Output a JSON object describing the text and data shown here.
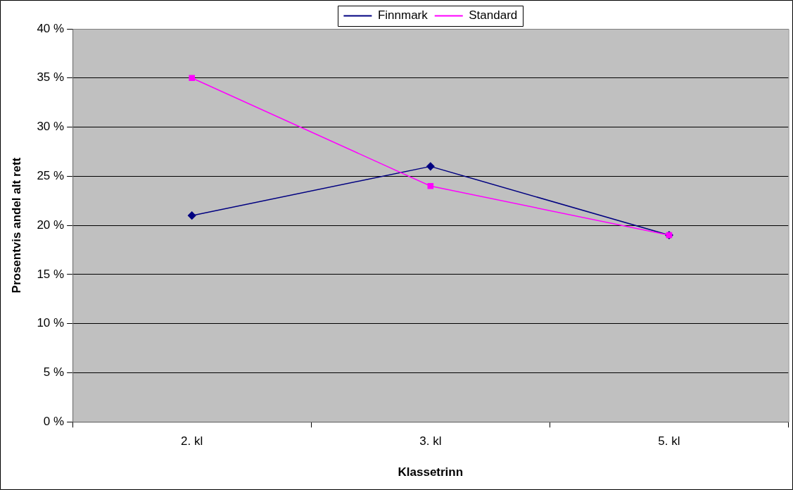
{
  "chart_data": {
    "type": "line",
    "xlabel": "Klassetrinn",
    "ylabel": "Prosentvis andel alt rett",
    "categories": [
      "2. kl",
      "3. kl",
      "5. kl"
    ],
    "series": [
      {
        "name": "Finnmark",
        "color": "#000080",
        "marker": "diamond",
        "values": [
          21,
          26,
          19
        ]
      },
      {
        "name": "Standard",
        "color": "#ff00ff",
        "marker": "square",
        "values": [
          35,
          24,
          19
        ]
      }
    ],
    "ylim": [
      0,
      40
    ],
    "yticks": [
      {
        "value": 0,
        "label": "0 %"
      },
      {
        "value": 5,
        "label": "5 %"
      },
      {
        "value": 10,
        "label": "10 %"
      },
      {
        "value": 15,
        "label": "15 %"
      },
      {
        "value": 20,
        "label": "20 %"
      },
      {
        "value": 25,
        "label": "25 %"
      },
      {
        "value": 30,
        "label": "30 %"
      },
      {
        "value": 35,
        "label": "35 %"
      },
      {
        "value": 40,
        "label": "40 %"
      }
    ],
    "grid": "y",
    "legend": "top"
  }
}
